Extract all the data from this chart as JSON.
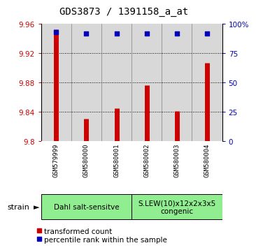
{
  "title": "GDS3873 / 1391158_a_at",
  "samples": [
    "GSM579999",
    "GSM580000",
    "GSM580001",
    "GSM580002",
    "GSM580003",
    "GSM580004"
  ],
  "red_values": [
    9.953,
    9.831,
    9.845,
    9.876,
    9.841,
    9.907
  ],
  "blue_values": [
    93,
    92,
    92,
    92,
    92,
    92
  ],
  "ylim_left": [
    9.8,
    9.96
  ],
  "ylim_right": [
    0,
    100
  ],
  "yticks_left": [
    9.8,
    9.84,
    9.88,
    9.92,
    9.96
  ],
  "yticks_right": [
    0,
    25,
    50,
    75,
    100
  ],
  "ytick_labels_left": [
    "9.8",
    "9.84",
    "9.88",
    "9.92",
    "9.96"
  ],
  "ytick_labels_right": [
    "0",
    "25",
    "50",
    "75",
    "100%"
  ],
  "groups": [
    {
      "label": "Dahl salt-sensitve",
      "span": [
        0,
        2
      ],
      "color": "#90EE90"
    },
    {
      "label": "S.LEW(10)x12x2x3x5\ncongenic",
      "span": [
        3,
        5
      ],
      "color": "#90EE90"
    }
  ],
  "bar_color": "#CC0000",
  "dot_color": "#0000BB",
  "background_color": "#ffffff",
  "plot_bg_color": "#d8d8d8",
  "cell_bg_color": "#d0d0d0",
  "left_label_color": "#CC0000",
  "right_label_color": "#0000BB",
  "legend_red_label": "transformed count",
  "legend_blue_label": "percentile rank within the sample",
  "strain_label": "strain",
  "fontsize_title": 10,
  "fontsize_ticks": 7.5,
  "fontsize_legend": 7.5,
  "fontsize_group": 7.5,
  "fontsize_strain": 8,
  "fontsize_sample": 6.5
}
